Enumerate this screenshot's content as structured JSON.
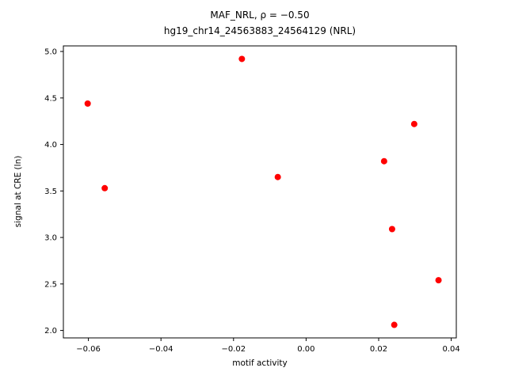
{
  "chart_data": {
    "type": "scatter",
    "title_lines": [
      "MAF_NRL, ρ = −0.50",
      "hg19_chr14_24563883_24564129 (NRL)"
    ],
    "xlabel": "motif activity",
    "ylabel": "signal at CRE (ln)",
    "xlim": [
      -0.0669,
      0.0414
    ],
    "ylim": [
      1.92,
      5.06
    ],
    "xticks": {
      "values": [
        -0.06,
        -0.04,
        -0.02,
        0.0,
        0.02,
        0.04
      ],
      "labels": [
        "−0.06",
        "−0.04",
        "−0.02",
        "0.00",
        "0.02",
        "0.04"
      ]
    },
    "yticks": {
      "values": [
        2.0,
        2.5,
        3.0,
        3.5,
        4.0,
        4.5,
        5.0
      ],
      "labels": [
        "2.0",
        "2.5",
        "3.0",
        "3.5",
        "4.0",
        "4.5",
        "5.0"
      ]
    },
    "points": [
      {
        "x": -0.0602,
        "y": 4.44
      },
      {
        "x": -0.0555,
        "y": 3.53
      },
      {
        "x": -0.0177,
        "y": 4.92
      },
      {
        "x": -0.0078,
        "y": 3.65
      },
      {
        "x": 0.0215,
        "y": 3.82
      },
      {
        "x": 0.0237,
        "y": 3.09
      },
      {
        "x": 0.0243,
        "y": 2.06
      },
      {
        "x": 0.0298,
        "y": 4.22
      },
      {
        "x": 0.0365,
        "y": 2.54
      }
    ],
    "marker": {
      "shape": "circle",
      "radius_px": 4,
      "color": "#ff0000"
    },
    "spine_color": "#000000",
    "grid": false,
    "legend": null
  }
}
